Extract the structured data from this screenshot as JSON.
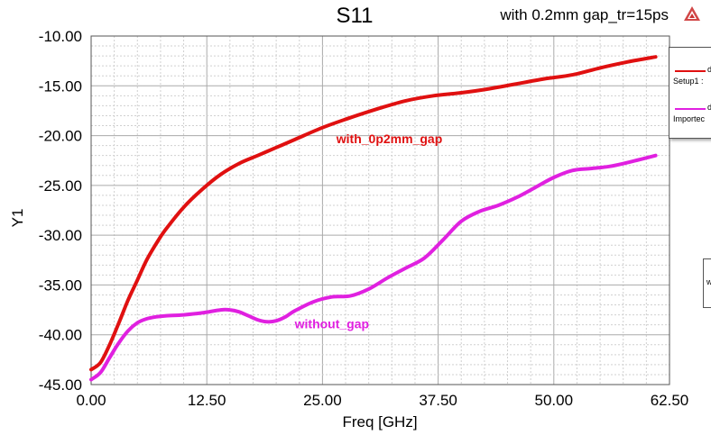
{
  "chart_data": {
    "type": "line",
    "title": "S11",
    "subtitle": "with 0.2mm gap_tr=15ps",
    "xlabel": "Freq [GHz]",
    "ylabel": "Y1",
    "xlim": [
      0,
      62.5
    ],
    "ylim": [
      -45,
      -10
    ],
    "xticks": [
      "0.00",
      "12.50",
      "25.00",
      "37.50",
      "50.00",
      "62.50"
    ],
    "yticks": [
      "-10.00",
      "-15.00",
      "-20.00",
      "-25.00",
      "-30.00",
      "-35.00",
      "-40.00",
      "-45.00"
    ],
    "grid": true,
    "series": [
      {
        "name": "with_0p2mm_gap",
        "color": "#e01010",
        "x": [
          0,
          1,
          2,
          3,
          4,
          5,
          6,
          7,
          8,
          10,
          12,
          14,
          16,
          18,
          20,
          22,
          25,
          28,
          31,
          34,
          37,
          40,
          43,
          46,
          49,
          52,
          55,
          58,
          61
        ],
        "y": [
          -43.5,
          -42.8,
          -41.0,
          -38.8,
          -36.5,
          -34.5,
          -32.5,
          -30.9,
          -29.5,
          -27.2,
          -25.4,
          -23.9,
          -22.8,
          -22.0,
          -21.2,
          -20.4,
          -19.2,
          -18.2,
          -17.3,
          -16.5,
          -16.0,
          -15.7,
          -15.3,
          -14.8,
          -14.3,
          -13.9,
          -13.2,
          -12.6,
          -12.1
        ]
      },
      {
        "name": "without_gap",
        "color": "#e020e0",
        "x": [
          0,
          1,
          2,
          3,
          4,
          5,
          6,
          7,
          8,
          10,
          12,
          14,
          15,
          16,
          17,
          18,
          19,
          20,
          21,
          22,
          24,
          26,
          28,
          30,
          32,
          34,
          36,
          38,
          40,
          42,
          44,
          46,
          48,
          50,
          52,
          54,
          56,
          58,
          61
        ],
        "y": [
          -44.5,
          -43.8,
          -42.3,
          -40.8,
          -39.6,
          -38.8,
          -38.4,
          -38.2,
          -38.1,
          -38.0,
          -37.8,
          -37.5,
          -37.5,
          -37.7,
          -38.1,
          -38.5,
          -38.7,
          -38.6,
          -38.2,
          -37.6,
          -36.7,
          -36.2,
          -36.1,
          -35.4,
          -34.3,
          -33.3,
          -32.3,
          -30.5,
          -28.6,
          -27.6,
          -27.0,
          -26.2,
          -25.2,
          -24.2,
          -23.5,
          -23.3,
          -23.1,
          -22.7,
          -22.0
        ]
      }
    ],
    "annotations": [
      {
        "text": "with_0p2mm_gap",
        "x": 26.5,
        "y": -20.2,
        "color": "#e01010"
      },
      {
        "text": "without_gap",
        "x": 22.0,
        "y": -38.8,
        "color": "#e020e0"
      }
    ]
  },
  "legend": {
    "entries": [
      {
        "label": "dB",
        "sublabel": "Setup1 :",
        "color": "#e01010"
      },
      {
        "label": "dB",
        "sublabel": "Importec",
        "color": "#e020e0"
      }
    ]
  },
  "small_box": {
    "label": "w"
  }
}
